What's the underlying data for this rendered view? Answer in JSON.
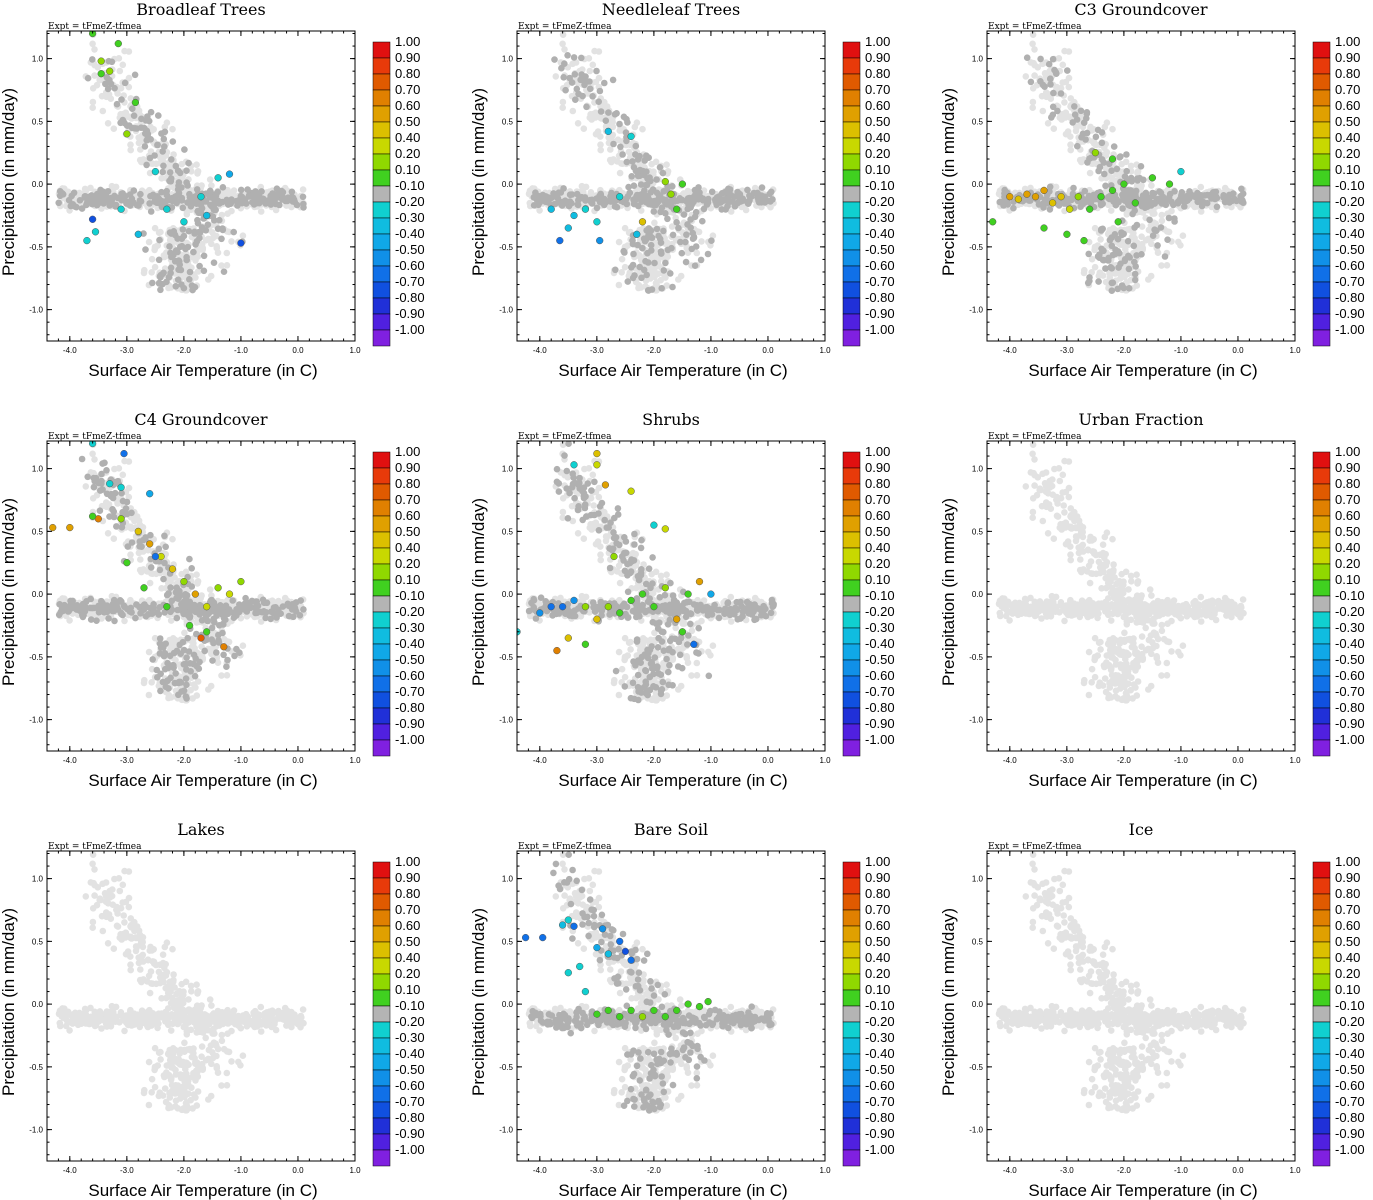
{
  "chart_data": {
    "type": "scatter",
    "expt_label": "Expt = tFmeZ-tfmea",
    "xlabel": "Surface Air Temperature (in C)",
    "ylabel": "Precipitation (in mm/day)",
    "xlim": [
      -4.4,
      1.0
    ],
    "ylim": [
      -1.25,
      1.22
    ],
    "xticks": [
      -4.0,
      -3.0,
      -2.0,
      -1.0,
      0.0,
      1.0
    ],
    "xtick_labels": [
      "-4.0",
      "-3.0",
      "-2.0",
      "-1.0",
      "0.0",
      "1.0"
    ],
    "yticks": [
      1.0,
      0.5,
      0.0,
      -0.5,
      -1.0
    ],
    "ytick_labels": [
      "1.0",
      "0.5",
      "0.0",
      "-0.5",
      "-1.0"
    ],
    "colorbar": {
      "labels": [
        "1.00",
        "0.90",
        "0.80",
        "0.70",
        "0.60",
        "0.50",
        "0.40",
        "0.20",
        "0.10",
        "-0.10",
        "-0.20",
        "-0.30",
        "-0.40",
        "-0.50",
        "-0.60",
        "-0.70",
        "-0.80",
        "-0.90",
        "-1.00"
      ],
      "colors": [
        "#e01010",
        "#e83a0a",
        "#e05a00",
        "#e08000",
        "#e0a000",
        "#dcc000",
        "#c8d800",
        "#90d800",
        "#40d020",
        "#b4b4b4",
        "#10d0d0",
        "#10bce0",
        "#10a8e8",
        "#1090e8",
        "#1070e8",
        "#1050e0",
        "#2030d8",
        "#5020e0",
        "#8020e0"
      ]
    },
    "background_color": "#e2e2e2",
    "neutral_color": "#b0b0b0",
    "panels": [
      {
        "title": "Broadleaf Trees",
        "coloured": [
          {
            "x": -3.6,
            "y": 1.2,
            "v": 0.15
          },
          {
            "x": -3.15,
            "y": 1.12,
            "v": 0.15
          },
          {
            "x": -3.45,
            "y": 0.98,
            "v": 0.3
          },
          {
            "x": -3.3,
            "y": 0.9,
            "v": 0.3
          },
          {
            "x": -3.45,
            "y": 0.88,
            "v": 0.15
          },
          {
            "x": -2.85,
            "y": 0.65,
            "v": 0.15
          },
          {
            "x": -3.0,
            "y": 0.4,
            "v": 0.3
          },
          {
            "x": -3.6,
            "y": -0.28,
            "v": -0.65
          },
          {
            "x": -3.55,
            "y": -0.38,
            "v": -0.25
          },
          {
            "x": -3.7,
            "y": -0.45,
            "v": -0.2
          },
          {
            "x": -1.0,
            "y": -0.47,
            "v": -0.65
          },
          {
            "x": -1.2,
            "y": 0.08,
            "v": -0.45
          },
          {
            "x": -2.3,
            "y": -0.2,
            "v": -0.25
          },
          {
            "x": -2.0,
            "y": -0.3,
            "v": -0.25
          },
          {
            "x": -1.6,
            "y": -0.25,
            "v": -0.3
          },
          {
            "x": -3.1,
            "y": -0.2,
            "v": -0.25
          },
          {
            "x": -1.7,
            "y": -0.1,
            "v": -0.2
          },
          {
            "x": -2.8,
            "y": -0.4,
            "v": -0.3
          },
          {
            "x": -1.4,
            "y": 0.05,
            "v": -0.2
          },
          {
            "x": -2.5,
            "y": 0.1,
            "v": -0.25
          }
        ]
      },
      {
        "title": "Needleleaf Trees",
        "coloured": [
          {
            "x": -2.8,
            "y": 0.42,
            "v": -0.3
          },
          {
            "x": -2.4,
            "y": 0.38,
            "v": -0.2
          },
          {
            "x": -3.65,
            "y": -0.45,
            "v": -0.6
          },
          {
            "x": -3.5,
            "y": -0.35,
            "v": -0.3
          },
          {
            "x": -2.95,
            "y": -0.45,
            "v": -0.5
          },
          {
            "x": -2.3,
            "y": -0.4,
            "v": -0.3
          },
          {
            "x": -3.2,
            "y": -0.2,
            "v": -0.25
          },
          {
            "x": -3.8,
            "y": -0.2,
            "v": -0.3
          },
          {
            "x": -1.6,
            "y": -0.2,
            "v": 0.15
          },
          {
            "x": -1.7,
            "y": -0.08,
            "v": 0.3
          },
          {
            "x": -1.8,
            "y": 0.02,
            "v": 0.3
          },
          {
            "x": -2.2,
            "y": -0.3,
            "v": 0.45
          },
          {
            "x": -1.5,
            "y": 0.0,
            "v": 0.15
          },
          {
            "x": -2.6,
            "y": -0.1,
            "v": -0.2
          },
          {
            "x": -3.0,
            "y": -0.3,
            "v": -0.25
          },
          {
            "x": -3.4,
            "y": -0.25,
            "v": -0.3
          }
        ]
      },
      {
        "title": "C3 Groundcover",
        "coloured": [
          {
            "x": -4.0,
            "y": -0.1,
            "v": 0.6
          },
          {
            "x": -3.85,
            "y": -0.12,
            "v": 0.5
          },
          {
            "x": -3.7,
            "y": -0.08,
            "v": 0.6
          },
          {
            "x": -3.55,
            "y": -0.1,
            "v": 0.55
          },
          {
            "x": -3.4,
            "y": -0.05,
            "v": 0.6
          },
          {
            "x": -3.25,
            "y": -0.15,
            "v": 0.45
          },
          {
            "x": -3.1,
            "y": -0.1,
            "v": 0.5
          },
          {
            "x": -2.95,
            "y": -0.2,
            "v": 0.4
          },
          {
            "x": -2.8,
            "y": -0.1,
            "v": 0.3
          },
          {
            "x": -2.6,
            "y": -0.2,
            "v": 0.15
          },
          {
            "x": -2.4,
            "y": -0.1,
            "v": 0.15
          },
          {
            "x": -2.2,
            "y": -0.05,
            "v": 0.15
          },
          {
            "x": -2.0,
            "y": 0.0,
            "v": 0.15
          },
          {
            "x": -1.8,
            "y": -0.15,
            "v": 0.15
          },
          {
            "x": -1.5,
            "y": 0.05,
            "v": 0.15
          },
          {
            "x": -1.2,
            "y": 0.0,
            "v": 0.15
          },
          {
            "x": -3.4,
            "y": -0.35,
            "v": 0.15
          },
          {
            "x": -3.0,
            "y": -0.4,
            "v": 0.15
          },
          {
            "x": -2.7,
            "y": -0.45,
            "v": 0.15
          },
          {
            "x": -2.5,
            "y": 0.25,
            "v": 0.3
          },
          {
            "x": -2.2,
            "y": 0.2,
            "v": 0.15
          },
          {
            "x": -4.3,
            "y": -0.3,
            "v": 0.15
          },
          {
            "x": -1.0,
            "y": 0.1,
            "v": -0.2
          },
          {
            "x": -2.1,
            "y": -0.3,
            "v": 0.15
          }
        ]
      },
      {
        "title": "C4 Groundcover",
        "coloured": [
          {
            "x": -3.05,
            "y": 1.12,
            "v": -0.6
          },
          {
            "x": -3.6,
            "y": 1.2,
            "v": -0.2
          },
          {
            "x": -3.3,
            "y": 0.88,
            "v": -0.2
          },
          {
            "x": -3.1,
            "y": 0.85,
            "v": -0.25
          },
          {
            "x": -2.6,
            "y": 0.8,
            "v": -0.4
          },
          {
            "x": -4.3,
            "y": 0.53,
            "v": 0.6
          },
          {
            "x": -4.0,
            "y": 0.53,
            "v": 0.6
          },
          {
            "x": -3.5,
            "y": 0.6,
            "v": 0.7
          },
          {
            "x": -3.6,
            "y": 0.62,
            "v": 0.15
          },
          {
            "x": -3.1,
            "y": 0.6,
            "v": 0.3
          },
          {
            "x": -2.8,
            "y": 0.5,
            "v": 0.45
          },
          {
            "x": -2.6,
            "y": 0.4,
            "v": 0.6
          },
          {
            "x": -2.4,
            "y": 0.3,
            "v": 0.4
          },
          {
            "x": -2.2,
            "y": 0.2,
            "v": 0.45
          },
          {
            "x": -2.0,
            "y": 0.1,
            "v": 0.3
          },
          {
            "x": -1.8,
            "y": 0.0,
            "v": 0.6
          },
          {
            "x": -1.6,
            "y": -0.1,
            "v": 0.4
          },
          {
            "x": -1.4,
            "y": 0.05,
            "v": 0.3
          },
          {
            "x": -1.2,
            "y": 0.0,
            "v": 0.4
          },
          {
            "x": -1.0,
            "y": 0.1,
            "v": 0.3
          },
          {
            "x": -2.3,
            "y": -0.1,
            "v": 0.15
          },
          {
            "x": -2.7,
            "y": 0.05,
            "v": 0.15
          },
          {
            "x": -1.9,
            "y": -0.25,
            "v": 0.15
          },
          {
            "x": -1.6,
            "y": -0.3,
            "v": 0.15
          },
          {
            "x": -1.7,
            "y": -0.35,
            "v": 0.8
          },
          {
            "x": -1.3,
            "y": -0.42,
            "v": 0.7
          },
          {
            "x": -2.5,
            "y": 0.3,
            "v": -0.6
          },
          {
            "x": -3.0,
            "y": 0.25,
            "v": 0.15
          }
        ]
      },
      {
        "title": "Shrubs",
        "coloured": [
          {
            "x": -3.4,
            "y": 1.03,
            "v": -0.25
          },
          {
            "x": -3.0,
            "y": 1.12,
            "v": 0.45
          },
          {
            "x": -3.0,
            "y": 1.03,
            "v": 0.4
          },
          {
            "x": -2.85,
            "y": 0.87,
            "v": 0.55
          },
          {
            "x": -2.4,
            "y": 0.82,
            "v": 0.4
          },
          {
            "x": -2.0,
            "y": 0.55,
            "v": -0.2
          },
          {
            "x": -1.8,
            "y": 0.52,
            "v": 0.4
          },
          {
            "x": -4.0,
            "y": -0.15,
            "v": -0.5
          },
          {
            "x": -3.8,
            "y": -0.1,
            "v": -0.6
          },
          {
            "x": -3.6,
            "y": -0.1,
            "v": -0.55
          },
          {
            "x": -3.4,
            "y": -0.05,
            "v": -0.5
          },
          {
            "x": -3.2,
            "y": -0.1,
            "v": 0.3
          },
          {
            "x": -3.0,
            "y": -0.2,
            "v": 0.5
          },
          {
            "x": -2.8,
            "y": -0.1,
            "v": 0.3
          },
          {
            "x": -2.6,
            "y": -0.15,
            "v": 0.15
          },
          {
            "x": -2.4,
            "y": -0.05,
            "v": 0.15
          },
          {
            "x": -2.2,
            "y": 0.0,
            "v": 0.15
          },
          {
            "x": -2.0,
            "y": -0.1,
            "v": 0.15
          },
          {
            "x": -1.8,
            "y": 0.05,
            "v": 0.3
          },
          {
            "x": -1.6,
            "y": -0.2,
            "v": 0.6
          },
          {
            "x": -1.4,
            "y": 0.0,
            "v": 0.15
          },
          {
            "x": -1.2,
            "y": 0.1,
            "v": 0.6
          },
          {
            "x": -1.0,
            "y": 0.0,
            "v": -0.4
          },
          {
            "x": -3.5,
            "y": -0.35,
            "v": 0.5
          },
          {
            "x": -3.7,
            "y": -0.45,
            "v": 0.7
          },
          {
            "x": -3.2,
            "y": -0.4,
            "v": 0.15
          },
          {
            "x": -4.4,
            "y": -0.3,
            "v": -0.2
          },
          {
            "x": -1.3,
            "y": -0.4,
            "v": -0.6
          },
          {
            "x": -1.5,
            "y": -0.3,
            "v": 0.15
          },
          {
            "x": -2.7,
            "y": 0.3,
            "v": 0.3
          }
        ]
      },
      {
        "title": "Urban Fraction",
        "coloured": []
      },
      {
        "title": "Lakes",
        "coloured": []
      },
      {
        "title": "Bare Soil",
        "coloured": [
          {
            "x": -4.25,
            "y": 0.53,
            "v": -0.6
          },
          {
            "x": -3.95,
            "y": 0.53,
            "v": -0.6
          },
          {
            "x": -3.6,
            "y": 0.63,
            "v": -0.3
          },
          {
            "x": -3.4,
            "y": 0.62,
            "v": -0.55
          },
          {
            "x": -3.5,
            "y": 0.67,
            "v": -0.2
          },
          {
            "x": -2.9,
            "y": 0.6,
            "v": -0.5
          },
          {
            "x": -2.6,
            "y": 0.5,
            "v": -0.6
          },
          {
            "x": -2.5,
            "y": 0.42,
            "v": -0.65
          },
          {
            "x": -2.8,
            "y": 0.4,
            "v": -0.3
          },
          {
            "x": -3.0,
            "y": 0.45,
            "v": -0.4
          },
          {
            "x": -3.3,
            "y": 0.3,
            "v": -0.2
          },
          {
            "x": -3.5,
            "y": 0.25,
            "v": -0.25
          },
          {
            "x": -2.4,
            "y": 0.35,
            "v": -0.6
          },
          {
            "x": -3.2,
            "y": 0.1,
            "v": -0.2
          },
          {
            "x": -2.8,
            "y": -0.05,
            "v": 0.15
          },
          {
            "x": -2.6,
            "y": -0.1,
            "v": 0.15
          },
          {
            "x": -2.4,
            "y": -0.05,
            "v": 0.15
          },
          {
            "x": -2.2,
            "y": -0.1,
            "v": 0.3
          },
          {
            "x": -2.0,
            "y": -0.05,
            "v": 0.15
          },
          {
            "x": -1.8,
            "y": -0.1,
            "v": 0.15
          },
          {
            "x": -1.6,
            "y": -0.05,
            "v": 0.15
          },
          {
            "x": -1.4,
            "y": 0.0,
            "v": 0.15
          },
          {
            "x": -1.2,
            "y": -0.02,
            "v": 0.15
          },
          {
            "x": -1.05,
            "y": 0.02,
            "v": 0.15
          },
          {
            "x": -3.0,
            "y": -0.08,
            "v": 0.15
          }
        ]
      },
      {
        "title": "Ice",
        "coloured": []
      }
    ]
  }
}
